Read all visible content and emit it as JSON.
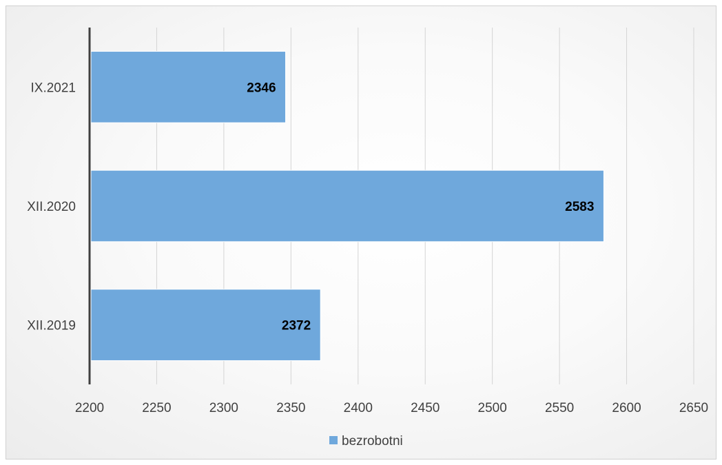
{
  "chart_data": {
    "type": "bar",
    "orientation": "horizontal",
    "categories": [
      "XII.2019",
      "XII.2020",
      "IX.2021"
    ],
    "series": [
      {
        "name": "bezrobotni",
        "values": [
          2372,
          2583,
          2346
        ],
        "color": "#6fa8dc"
      }
    ],
    "xlim": [
      2200,
      2650
    ],
    "xticks": [
      2200,
      2250,
      2300,
      2350,
      2400,
      2450,
      2500,
      2550,
      2600,
      2650
    ],
    "grid": true,
    "legend_position": "bottom",
    "data_labels": true
  }
}
